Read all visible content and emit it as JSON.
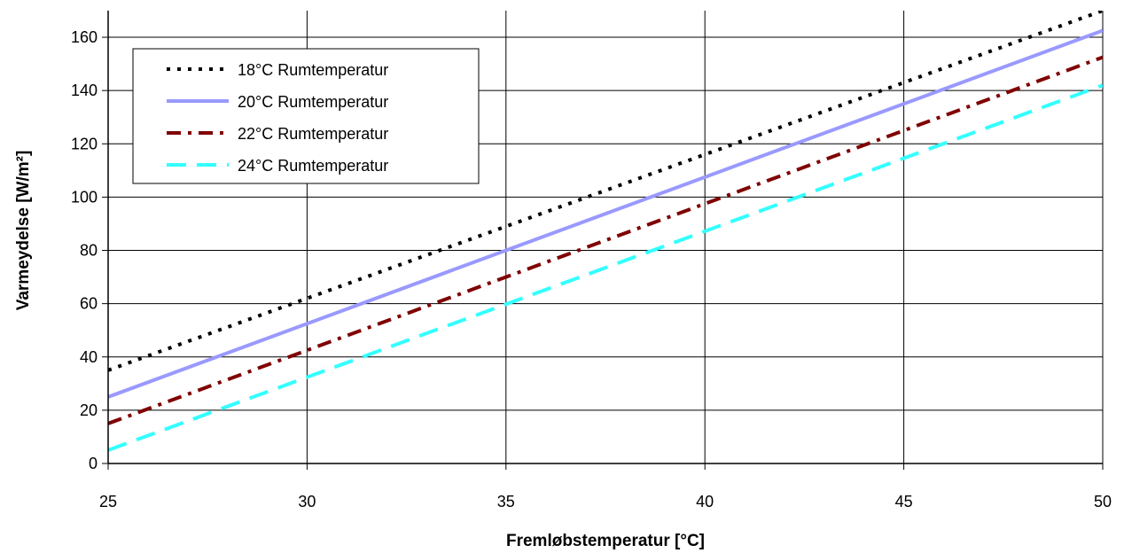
{
  "chart_data": {
    "type": "line",
    "xlabel": "Fremløbstemperatur [°C]",
    "ylabel": "Varmeydelse [W/m²]",
    "xlim": [
      25,
      50
    ],
    "ylim": [
      0,
      170
    ],
    "xticks": [
      "25",
      "30",
      "35",
      "40",
      "45",
      "50"
    ],
    "yticks": [
      "0",
      "20",
      "40",
      "60",
      "80",
      "100",
      "120",
      "140",
      "160"
    ],
    "grid": true,
    "legend_position": "top-left",
    "series": [
      {
        "name": "18°C Rumtemperatur",
        "color": "#000000",
        "style": "dotted",
        "x": [
          25,
          50
        ],
        "y": [
          35,
          170
        ]
      },
      {
        "name": "20°C Rumtemperatur",
        "color": "#9999ff",
        "style": "solid",
        "x": [
          25,
          50
        ],
        "y": [
          25,
          162.5
        ]
      },
      {
        "name": "22°C Rumtemperatur",
        "color": "#800000",
        "style": "dash-dot",
        "x": [
          25,
          50
        ],
        "y": [
          15,
          152.5
        ]
      },
      {
        "name": "24°C Rumtemperatur",
        "color": "#33ffff",
        "style": "dashed",
        "x": [
          25,
          50
        ],
        "y": [
          5,
          142
        ]
      }
    ]
  }
}
